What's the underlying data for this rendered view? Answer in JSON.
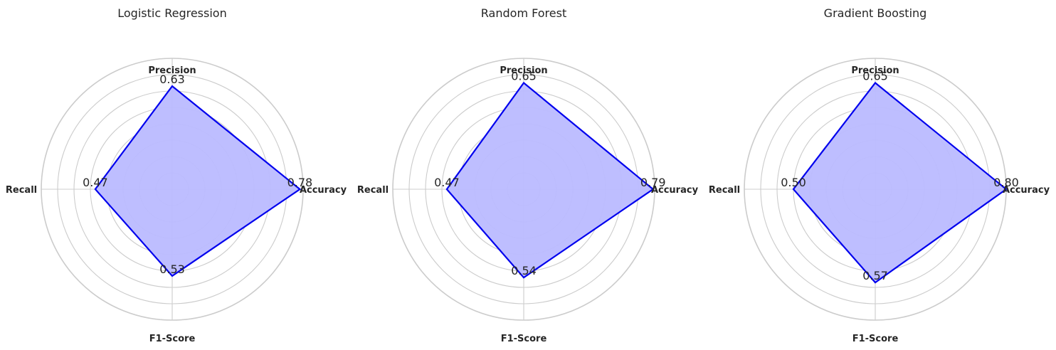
{
  "chart_data": [
    {
      "type": "radar",
      "title": "Logistic Regression",
      "categories": [
        "Accuracy",
        "Precision",
        "Recall",
        "F1-Score"
      ],
      "values": [
        0.78,
        0.63,
        0.47,
        0.53
      ],
      "value_labels": [
        "0.78",
        "0.63",
        "0.47",
        "0.53"
      ],
      "rlim": [
        0,
        0.8
      ],
      "grid": true,
      "line_color": "#0000ee",
      "fill_color": "#bbbbff"
    },
    {
      "type": "radar",
      "title": "Random Forest",
      "categories": [
        "Accuracy",
        "Precision",
        "Recall",
        "F1-Score"
      ],
      "values": [
        0.79,
        0.65,
        0.47,
        0.54
      ],
      "value_labels": [
        "0.79",
        "0.65",
        "0.47",
        "0.54"
      ],
      "rlim": [
        0,
        0.8
      ],
      "grid": true,
      "line_color": "#0000ee",
      "fill_color": "#bbbbff"
    },
    {
      "type": "radar",
      "title": "Gradient Boosting",
      "categories": [
        "Accuracy",
        "Precision",
        "Recall",
        "F1-Score"
      ],
      "values": [
        0.8,
        0.65,
        0.5,
        0.57
      ],
      "value_labels": [
        "0.80",
        "0.65",
        "0.50",
        "0.57"
      ],
      "rlim": [
        0,
        0.8
      ],
      "grid": true,
      "line_color": "#0000ee",
      "fill_color": "#bbbbff"
    }
  ]
}
